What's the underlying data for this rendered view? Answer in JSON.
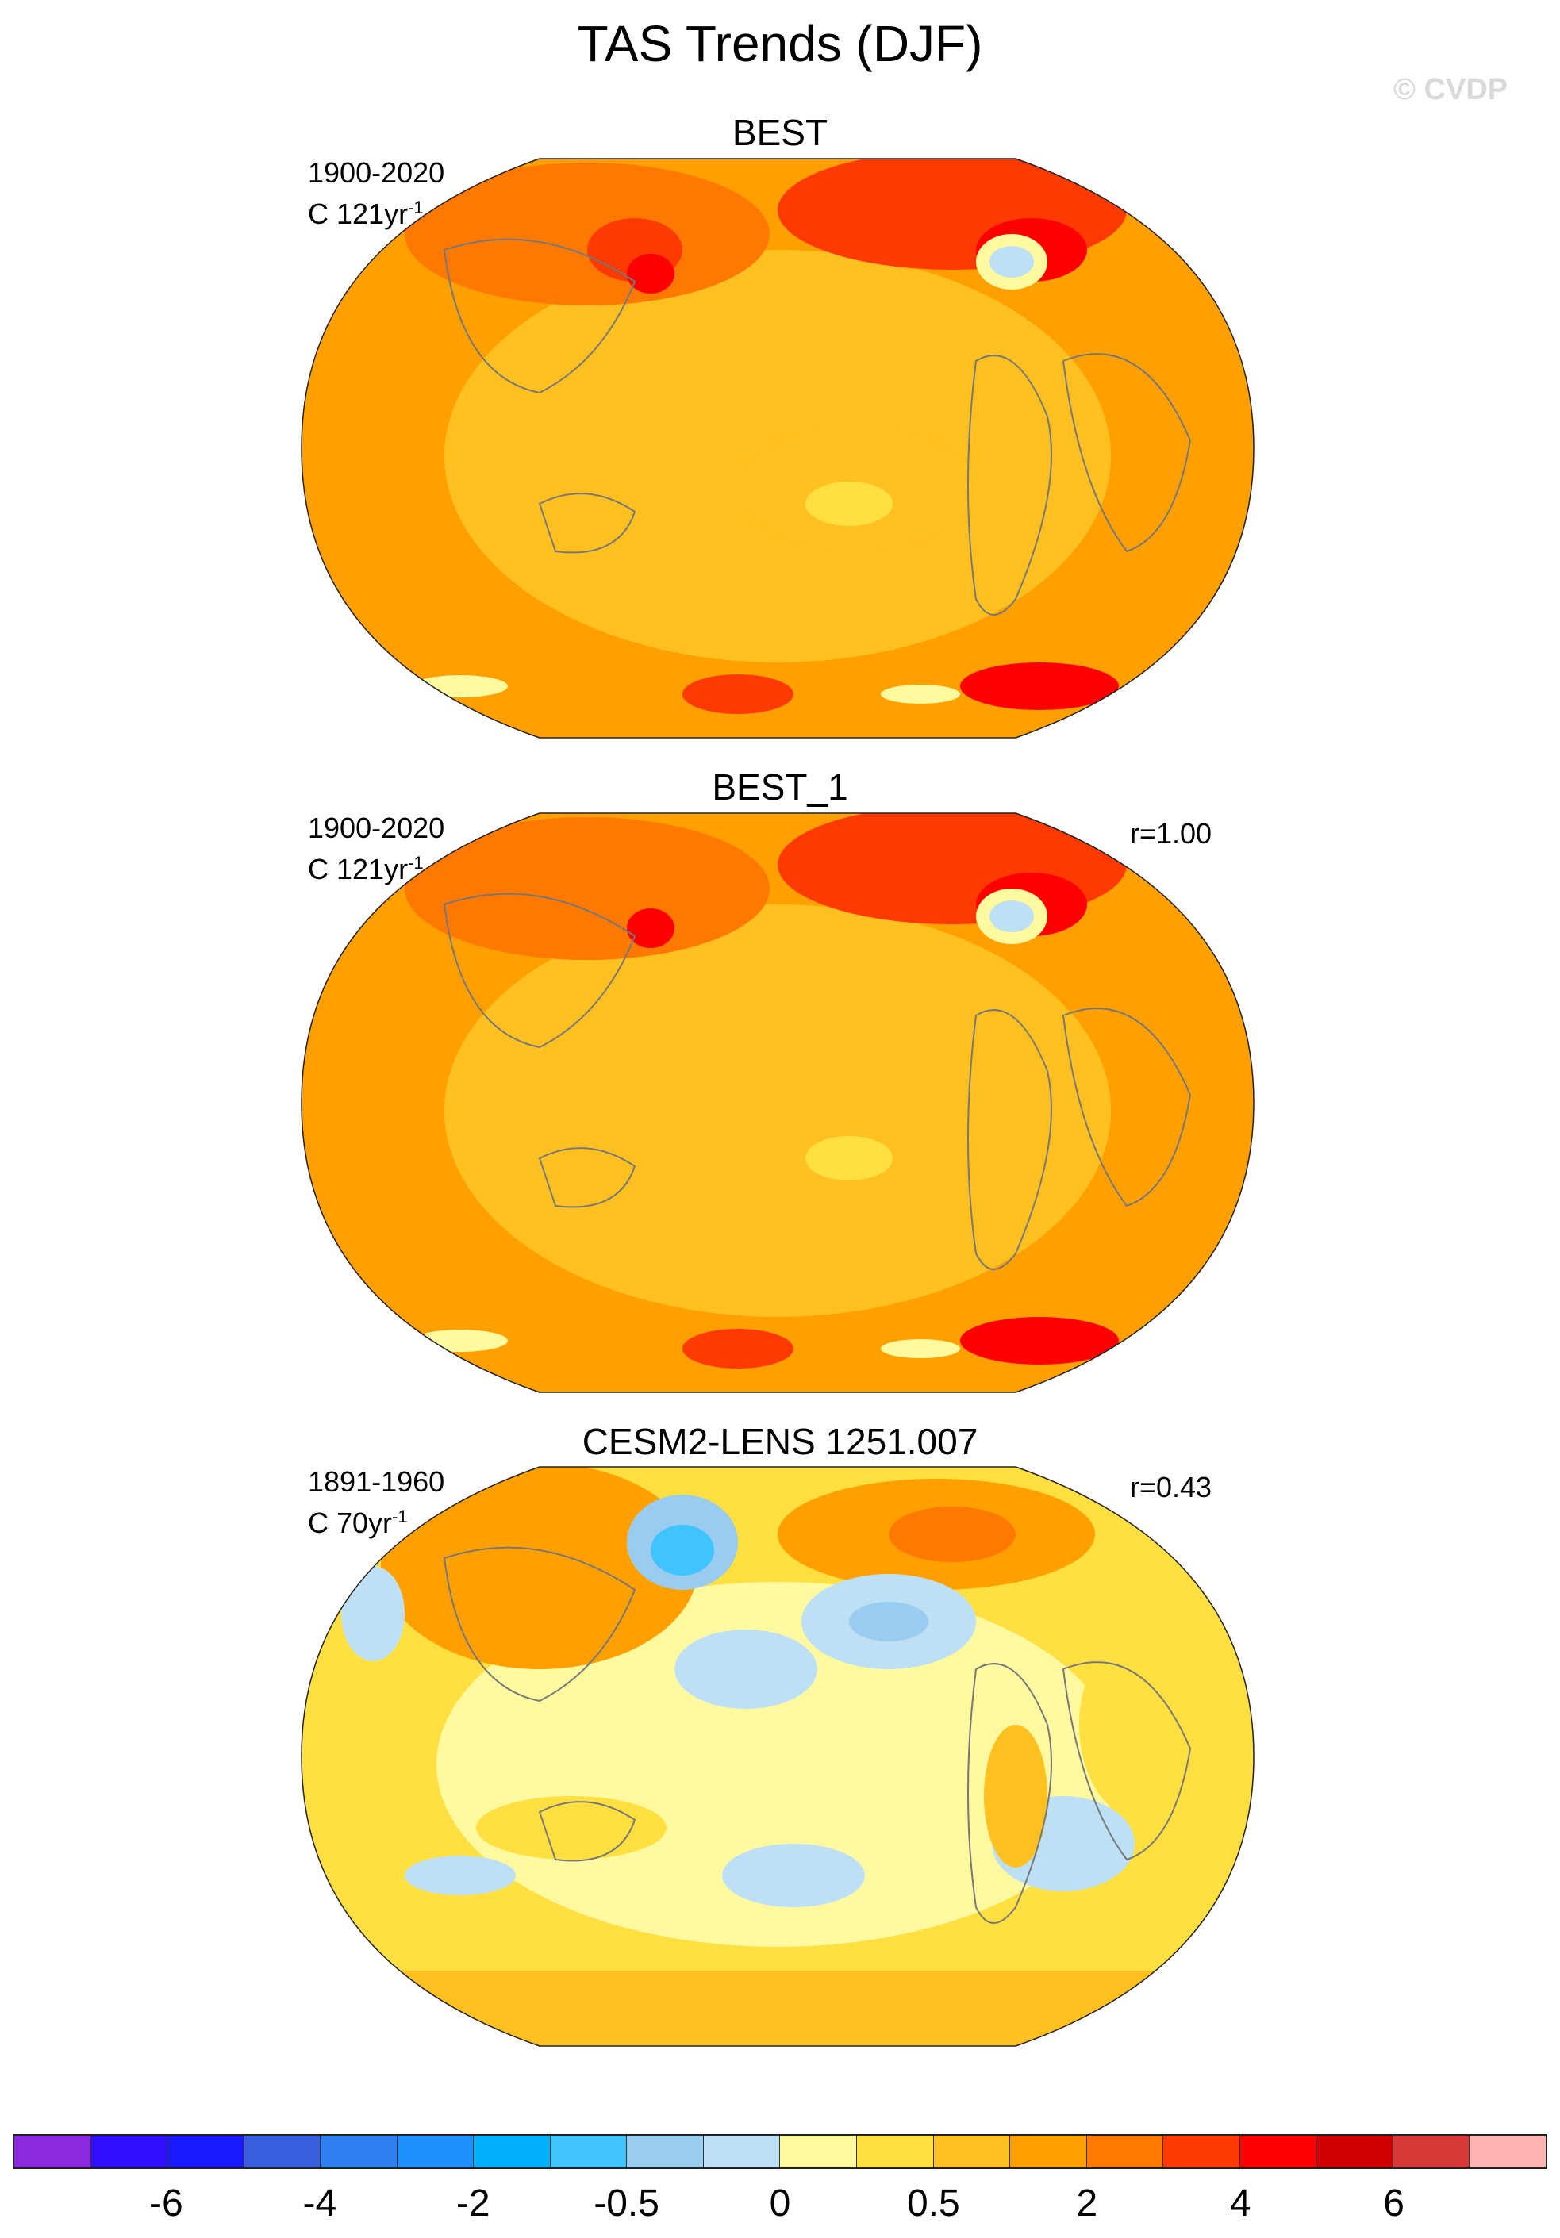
{
  "title": "TAS Trends (DJF)",
  "watermark": "© CVDP",
  "panels": [
    {
      "title": "BEST",
      "period": "1900-2020",
      "units_base": "C 121yr",
      "units_exp": "-1",
      "r": ""
    },
    {
      "title": "BEST_1",
      "period": "1900-2020",
      "units_base": "C 121yr",
      "units_exp": "-1",
      "r": "r=1.00"
    },
    {
      "title": "CESM2-LENS 1251.007",
      "period": "1891-1960",
      "units_base": "C 70yr",
      "units_exp": "-1",
      "r": "r=0.43"
    }
  ],
  "colorbar": {
    "colors": [
      "#8a2be2",
      "#3010ff",
      "#1a1aff",
      "#3a5ee0",
      "#2f7ff0",
      "#1e90ff",
      "#00b0ff",
      "#40c4ff",
      "#99ccee",
      "#bde0f5",
      "#fffaa0",
      "#ffe040",
      "#ffc020",
      "#ffa000",
      "#ff7800",
      "#ff3a00",
      "#ff0000",
      "#d00000",
      "#d83a3a",
      "#ffb3b3"
    ],
    "ticks": [
      "-6",
      "-4",
      "-2",
      "-0.5",
      "0",
      "0.5",
      "2",
      "4",
      "6"
    ]
  }
}
